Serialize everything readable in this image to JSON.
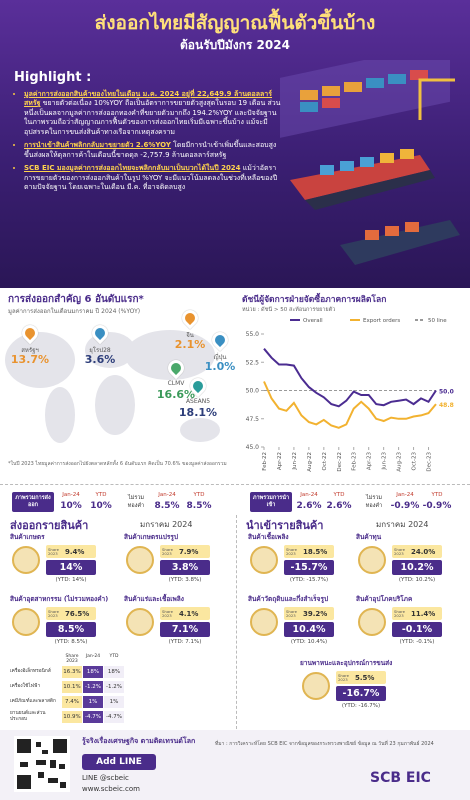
{
  "header": {
    "title": "ส่งออกไทยมีสัญญาณฟื้นตัวขึ้นบ้าง",
    "subtitle": "ต้อนรับปีมังกร 2024"
  },
  "highlight": {
    "title": "Highlight :",
    "bullets": [
      {
        "strong": "มูลค่าการส่งออกสินค้าของไทยในเดือน ม.ค. 2024 อยู่ที่ 22,649.9 ล้านดอลลาร์สหรัฐ",
        "text": "ขยายตัวต่อเนื่อง 10%YOY ถือเป็นอัตราการขยายตัวสูงสุดในรอบ 19 เดือน ส่วนหนึ่งเป็นผลจากมูลค่าการส่งออกทองคำที่ขยายตัวมากถึง 194.2%YOY และปัจจัยฐาน ในภาพรวมถือว่าสัญญาณการฟื้นตัวของการส่งออกไทยเริ่มมีเฉพาะขึ้นบ้าง แม้จะมีอุปสรรคในการขนส่งสินค้าทางเรือจากเหตุสงคราม"
      },
      {
        "strong": "การนำเข้าสินค้าพลิกกลับมาขยายตัว 2.6%YOY",
        "text": "โดยมีการนำเข้าเพิ่มขึ้นและสอบสูงขึ้นส่งผลให้ดุลการค้าในเดือนนี้ขาดดุล -2,757.9 ล้านดอลลาร์สหรัฐ"
      },
      {
        "strong": "SCB EIC มองมูลค่าการส่งออกไทยจะพลิกกลับมาเป็นบวกได้ในปี 2024",
        "text": "แม้ว่าอัตราการขยายตัวของการส่งออกสินค้าในรูป %YOY จะมีแนวโน้มลดลงในช่วงที่เหลือของปีตามปัจจัยฐาน โดยเฉพาะในเดือน มี.ค. ที่อาจติดลบสูง"
      }
    ]
  },
  "markets": {
    "title": "การส่งออกสำคัญ 6 อันดับแรก*",
    "subtitle": "มูลค่าการส่งออกในเดือนมกราคม ปี 2024 (%YOY)",
    "items": [
      {
        "name": "สหรัฐฯ",
        "value": "13.7%"
      },
      {
        "name": "ยุโรป28",
        "value": "3.6%"
      },
      {
        "name": "จีน",
        "value": "2.1%"
      },
      {
        "name": "ญี่ปุ่น",
        "value": "1.0%"
      },
      {
        "name": "CLMV",
        "value": "16.6%"
      },
      {
        "name": "ASEAN5",
        "value": "18.1%"
      }
    ],
    "note": "*ในปี 2023 ไทยมูลค่าการส่งออกไปยังตลาดหลักทั้ง 6 อันดับแรก คิดเป็น 70.6% ของมูลค่าส่งออกรวม"
  },
  "pmi_chart": {
    "type": "line",
    "title": "ดัชนีผู้จัดการฝ่ายจัดซื้อภาคการผลิตโลก",
    "subtitle": "หน่วย : ดัชนี > 50 สะท้อนการขยายตัว",
    "categories": [
      "Feb-22",
      null,
      "Apr-22",
      null,
      "Jun-22",
      null,
      "Aug-22",
      null,
      "Oct-22",
      null,
      "Dec-22",
      null,
      "Feb-23",
      null,
      "Apr-23",
      null,
      "Jun-23",
      null,
      "Aug-23",
      null,
      "Oct-23",
      null,
      "Dec-23",
      null
    ],
    "series": [
      {
        "name": "Overall",
        "color": "#4b2c91",
        "values": [
          53.7,
          52.9,
          52.3,
          52.3,
          52.2,
          51.1,
          50.3,
          49.8,
          49.4,
          48.8,
          48.6,
          49.1,
          49.9,
          49.6,
          49.6,
          48.8,
          48.7,
          49.0,
          49.1,
          49.2,
          48.8,
          49.3,
          49.0,
          50.0
        ],
        "value_labels": [
          null,
          null,
          null,
          null,
          null,
          null,
          null,
          null,
          null,
          null,
          null,
          null,
          null,
          null,
          null,
          null,
          null,
          null,
          null,
          null,
          null,
          null,
          null,
          "50.0"
        ]
      },
      {
        "name": "Export orders",
        "color": "#f2b230",
        "values": [
          50.8,
          49.3,
          48.4,
          48.2,
          48.9,
          47.8,
          47.2,
          47.0,
          47.4,
          46.9,
          46.7,
          47.0,
          48.4,
          49.0,
          48.4,
          47.5,
          47.3,
          47.6,
          47.5,
          47.5,
          47.7,
          47.8,
          48.0,
          48.8
        ],
        "value_labels": [
          null,
          null,
          null,
          null,
          null,
          null,
          null,
          null,
          null,
          null,
          null,
          null,
          null,
          null,
          null,
          null,
          null,
          null,
          null,
          null,
          null,
          null,
          null,
          "48.8"
        ]
      }
    ],
    "reference_line": {
      "name": "50 line",
      "value": 50,
      "color": "#999999"
    },
    "ylim": [
      45,
      55
    ],
    "yticks": [
      {
        "value": 45,
        "label": "45.0"
      },
      {
        "value": 47.5,
        "label": "47.5"
      },
      {
        "value": 50,
        "label": "50.0"
      },
      {
        "value": 52.5,
        "label": "52.5"
      },
      {
        "value": 55,
        "label": "55.0"
      }
    ]
  },
  "exports": {
    "summary": {
      "label": "ภาพรวมการส่งออก",
      "jan_label": "Jan-24",
      "jan": "10%",
      "ytd_label": "YTD",
      "ytd": "10%",
      "ex_label": "ไม่รวมทองคำ",
      "ex_jan_label": "Jan-24",
      "ex_jan": "8.5%",
      "ex_ytd_label": "YTD",
      "ex_ytd": "8.5%"
    },
    "title": "ส่งออกรายสินค้า",
    "period": "มกราคม 2024",
    "share_label": "Share 2023",
    "items": [
      {
        "name": "สินค้าเกษตร",
        "share": "9.4%",
        "jan": "14%",
        "ytd": "(YTD: 14%)"
      },
      {
        "name": "สินค้าเกษตรแปรรูป",
        "share": "7.9%",
        "jan": "3.8%",
        "ytd": "(YTD: 3.8%)"
      },
      {
        "name": "สินค้าอุตสาหกรรม (ไม่รวมทองคำ)",
        "share": "76.5%",
        "jan": "8.5%",
        "ytd": "(YTD: 8.5%)"
      },
      {
        "name": "สินค้าแร่และเชื้อเพลิง",
        "share": "4.1%",
        "jan": "7.1%",
        "ytd": "(YTD: 7.1%)"
      }
    ],
    "table": {
      "header": [
        "Share 2023",
        "Jan-24",
        "YTD"
      ],
      "rows": [
        [
          "เครื่องอิเล็กทรอนิกส์",
          "16.3%",
          "18%",
          "18%"
        ],
        [
          "เครื่องใช้ไฟฟ้า",
          "10.1%",
          "-1.2%",
          "-1.2%"
        ],
        [
          "เคมีภัณฑ์และพลาสติก",
          "7.4%",
          "1%",
          "1%"
        ],
        [
          "ยานยนต์และส่วนประกอบ",
          "10.9%",
          "-4.7%",
          "-4.7%"
        ]
      ]
    }
  },
  "imports": {
    "summary": {
      "label": "ภาพรวมการนำเข้า",
      "jan_label": "Jan-24",
      "jan": "2.6%",
      "ytd_label": "YTD",
      "ytd": "2.6%",
      "ex_label": "ไม่รวมทองคำ",
      "ex_jan_label": "Jan-24",
      "ex_jan": "-0.9%",
      "ex_ytd_label": "YTD",
      "ex_ytd": "-0.9%"
    },
    "title": "นำเข้ารายสินค้า",
    "period": "มกราคม 2024",
    "share_label": "Share 2023",
    "items": [
      {
        "name": "สินค้าเชื้อเพลิง",
        "share": "18.5%",
        "jan": "-15.7%",
        "ytd": "(YTD: -15.7%)"
      },
      {
        "name": "สินค้าทุน",
        "share": "24.0%",
        "jan": "10.2%",
        "ytd": "(YTD: 10.2%)"
      },
      {
        "name": "สินค้าวัตถุดิบและกึ่งสำเร็จรูป",
        "share": "39.2%",
        "jan": "10.4%",
        "ytd": "(YTD: 10.4%)"
      },
      {
        "name": "สินค้าอุปโภคบริโภค",
        "share": "11.4%",
        "jan": "-0.1%",
        "ytd": "(YTD: -0.1%)"
      },
      {
        "name": "ยานพาหนะและอุปกรณ์การขนส่ง",
        "share": "5.5%",
        "jan": "-16.7%",
        "ytd": "(YTD: -16.7%)"
      }
    ]
  },
  "footer": {
    "tagline": "รู้จริงเรื่องเศรษฐกิจ ตามติดเทรนด์โลก",
    "add_line": "Add LINE",
    "line_id": "LINE @scbeic",
    "website": "www.scbeic.com",
    "source": "ที่มา : การวิเคราะห์โดย SCB EIC จากข้อมูลของกระทรวงพาณิชย์ ข้อมูล ณ วันที่ 23 กุมภาพันธ์ 2024",
    "logo": "SCB EIC"
  }
}
